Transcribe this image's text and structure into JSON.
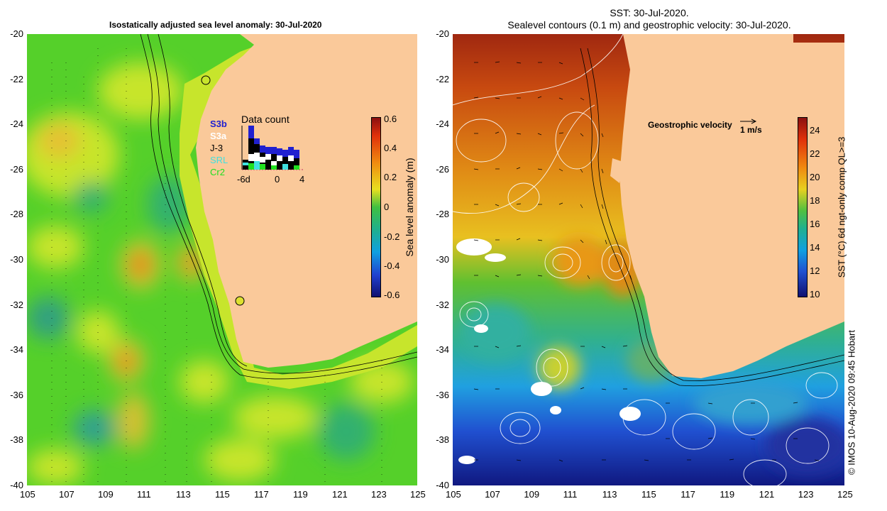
{
  "left_map": {
    "title": "Isostatically adjusted sea level anomaly: 30-Jul-2020",
    "colorbar_label": "Sea level anomaly (m)",
    "colorbar_ticks": [
      "0.6",
      "0.4",
      "0.2",
      "0",
      "-0.2",
      "-0.4",
      "-0.6"
    ],
    "colors": {
      "land": "#fac99a",
      "green": "#55d02a",
      "yellow": "#c7e52c",
      "orange": "#e88a14"
    },
    "inset": {
      "title": "Data count",
      "missions": [
        {
          "name": "S3b",
          "color": "#2020d0"
        },
        {
          "name": "S3a",
          "color": "#ffffff"
        },
        {
          "name": "J-3",
          "color": "#000000"
        },
        {
          "name": "SRL",
          "color": "#40e0e0"
        },
        {
          "name": "Cr2",
          "color": "#20e020"
        }
      ],
      "x_ticks": [
        "-6d",
        "0",
        "4"
      ]
    }
  },
  "right_map": {
    "title_line1": "SST: 30-Jul-2020.",
    "title_line2": "Sealevel contours (0.1 m) and geostrophic velocity: 30-Jul-2020.",
    "velocity_label": "Geostrophic velocity",
    "velocity_scale": "1 m/s",
    "colorbar_label": "SST (°C) 6d ngt-only comp QL>=3",
    "colorbar_ticks": [
      "24",
      "22",
      "20",
      "18",
      "16",
      "14",
      "12",
      "10"
    ]
  },
  "y_ticks": [
    "-20",
    "-22",
    "-24",
    "-26",
    "-28",
    "-30",
    "-32",
    "-34",
    "-36",
    "-38",
    "-40"
  ],
  "x_ticks": [
    "105",
    "107",
    "109",
    "111",
    "113",
    "115",
    "117",
    "119",
    "121",
    "123",
    "125"
  ],
  "credit": "©  IMOS 10-Aug-2020 09:45 Hobart"
}
